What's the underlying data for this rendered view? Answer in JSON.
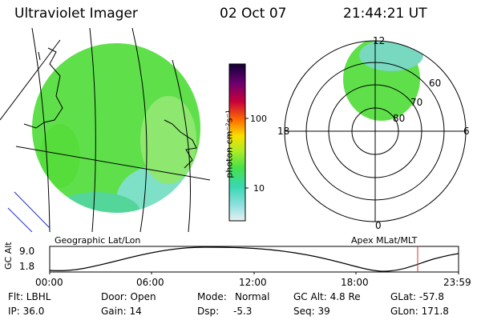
{
  "header": {
    "title": "Ultraviolet Imager",
    "date": "02 Oct 07",
    "time": "21:44:21 UT"
  },
  "colorbar": {
    "unit_label": "photon cm⁻²s⁻¹",
    "ticks": [
      "100",
      "10"
    ]
  },
  "map_panel": {
    "caption": "Geographic Lat/Lon"
  },
  "polar_panel": {
    "caption": "Apex MLat/MLT",
    "mlt_labels": {
      "top": "12",
      "left": "18",
      "right": "6",
      "bottom": "0"
    },
    "lat_labels": [
      "60",
      "70",
      "80"
    ]
  },
  "altitude_strip": {
    "ylabel": "GC Alt",
    "y_ticks": [
      "9.0",
      "1.8"
    ],
    "x_ticks": [
      "00:00",
      "06:00",
      "12:00",
      "18:00",
      "23:59"
    ]
  },
  "footer": {
    "row1": {
      "flt": "Flt: LBHL",
      "door": "Door: Open",
      "mode_label": "Mode:",
      "mode_value": "Normal",
      "gcalt": "GC Alt: 4.8 Re",
      "glat": "GLat: -57.8"
    },
    "row2": {
      "ip": "IP: 36.0",
      "gain": "Gain: 14",
      "dsp_label": "Dsp:",
      "dsp_value": "-5.3",
      "seq": "Seq: 39",
      "glon": "GLon: 171.8"
    }
  },
  "colors": {
    "aurora_green": "#5fe04a",
    "aurora_cyan": "#58d6c8",
    "time_marker": "#e03030",
    "coast_blue": "#2030c0"
  }
}
